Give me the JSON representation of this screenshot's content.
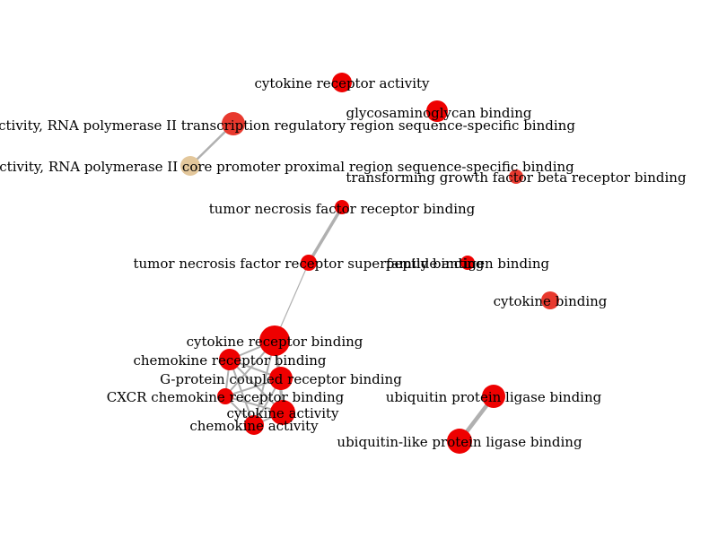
{
  "colors": {
    "node_red": "#ee0000",
    "node_red_light": "#e8392e",
    "node_tan": "#e3c79b",
    "edge": "#b0b0b0",
    "text": "#000000"
  },
  "nodes": [
    {
      "id": "n1",
      "label": "cytokine receptor activity",
      "color": "red"
    },
    {
      "id": "n2",
      "label": "glycosaminoglycan binding",
      "color": "red"
    },
    {
      "id": "n3",
      "label": "transcriptional activator activity, RNA polymerase II transcription regulatory region sequence-specific binding",
      "color": "red_light"
    },
    {
      "id": "n4",
      "label": "transcriptional activator activity, RNA polymerase II core promoter proximal region sequence-specific binding",
      "color": "tan"
    },
    {
      "id": "n5",
      "label": "transforming growth factor beta receptor binding",
      "color": "red_light"
    },
    {
      "id": "n6",
      "label": "tumor necrosis factor receptor binding",
      "color": "red"
    },
    {
      "id": "n7",
      "label": "tumor necrosis factor receptor superfamily binding",
      "color": "red"
    },
    {
      "id": "n8",
      "label": "peptide antigen binding",
      "color": "red"
    },
    {
      "id": "n9",
      "label": "cytokine binding",
      "color": "red_light"
    },
    {
      "id": "n10",
      "label": "cytokine receptor binding",
      "color": "red"
    },
    {
      "id": "n11",
      "label": "chemokine receptor binding",
      "color": "red"
    },
    {
      "id": "n12",
      "label": "G-protein coupled receptor binding",
      "color": "red"
    },
    {
      "id": "n13",
      "label": "CXCR chemokine receptor binding",
      "color": "red"
    },
    {
      "id": "n14",
      "label": "cytokine activity",
      "color": "red"
    },
    {
      "id": "n15",
      "label": "chemokine activity",
      "color": "red"
    },
    {
      "id": "n16",
      "label": "ubiquitin protein ligase binding",
      "color": "red"
    },
    {
      "id": "n17",
      "label": "ubiquitin-like protein ligase binding",
      "color": "red"
    }
  ],
  "edges": [
    {
      "source": "n3",
      "target": "n4"
    },
    {
      "source": "n6",
      "target": "n7"
    },
    {
      "source": "n7",
      "target": "n10"
    },
    {
      "source": "n10",
      "target": "n11"
    },
    {
      "source": "n10",
      "target": "n12"
    },
    {
      "source": "n10",
      "target": "n13"
    },
    {
      "source": "n10",
      "target": "n14"
    },
    {
      "source": "n10",
      "target": "n15"
    },
    {
      "source": "n11",
      "target": "n12"
    },
    {
      "source": "n11",
      "target": "n13"
    },
    {
      "source": "n11",
      "target": "n14"
    },
    {
      "source": "n11",
      "target": "n15"
    },
    {
      "source": "n12",
      "target": "n13"
    },
    {
      "source": "n12",
      "target": "n14"
    },
    {
      "source": "n12",
      "target": "n15"
    },
    {
      "source": "n13",
      "target": "n14"
    },
    {
      "source": "n13",
      "target": "n15"
    },
    {
      "source": "n14",
      "target": "n15"
    },
    {
      "source": "n16",
      "target": "n17"
    }
  ]
}
